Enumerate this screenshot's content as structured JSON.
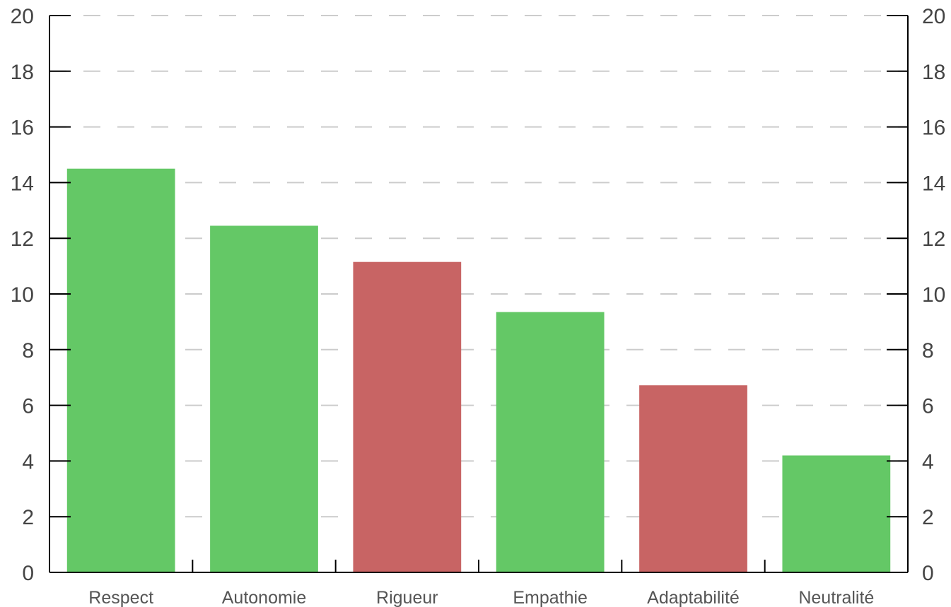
{
  "chart_data": {
    "type": "bar",
    "categories": [
      "Respect",
      "Autonomie",
      "Rigueur",
      "Empathie",
      "Adaptabilité",
      "Neutralité"
    ],
    "values": [
      14.5,
      12.45,
      11.15,
      9.35,
      6.72,
      4.2
    ],
    "bar_colors": [
      "#64c866",
      "#64c866",
      "#c86464",
      "#64c866",
      "#c86464",
      "#64c866"
    ],
    "yticks": [
      "0",
      "2",
      "4",
      "6",
      "8",
      "10",
      "12",
      "14",
      "16",
      "18",
      "20"
    ],
    "ylim": [
      0,
      20
    ],
    "grid": "dashed horizontal",
    "title": "",
    "xlabel": "",
    "ylabel": ""
  }
}
